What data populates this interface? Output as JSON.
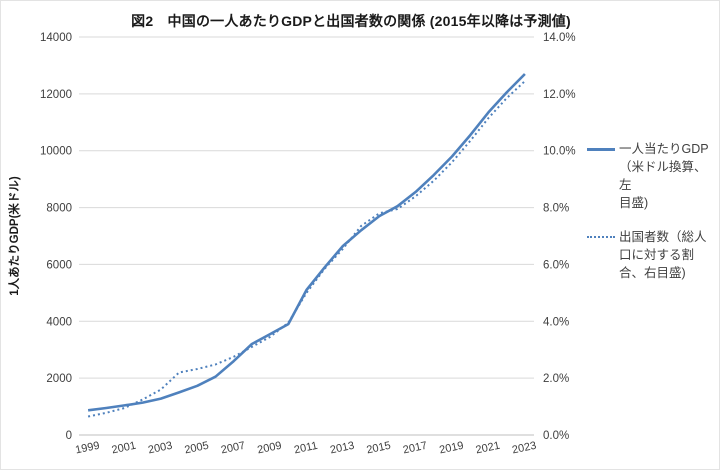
{
  "chart_data": {
    "type": "line",
    "title": "図2　中国の一人あたりGDPと出国者数の関係 (2015年以降は予測値)",
    "categories": [
      1999,
      2000,
      2001,
      2002,
      2003,
      2004,
      2005,
      2006,
      2007,
      2008,
      2009,
      2010,
      2011,
      2012,
      2013,
      2014,
      2015,
      2016,
      2017,
      2018,
      2019,
      2020,
      2021,
      2022,
      2023
    ],
    "x_tick_labels": [
      "1999",
      "2001",
      "2003",
      "2005",
      "2007",
      "2009",
      "2011",
      "2013",
      "2015",
      "2017",
      "2019",
      "2021",
      "2023"
    ],
    "series": [
      {
        "name": "一人当たりGDP（米ドル換算、左目盛)",
        "legend_lines": [
          "一人当たりGDP",
          "（米ドル換算、左",
          "目盛)"
        ],
        "axis": "left",
        "line_style": "solid",
        "unit": "USD",
        "color": "#4f81bd",
        "values": [
          870,
          950,
          1040,
          1140,
          1280,
          1500,
          1730,
          2050,
          2600,
          3200,
          3550,
          3900,
          5100,
          5900,
          6650,
          7200,
          7700,
          8050,
          8550,
          9150,
          9800,
          10550,
          11350,
          12050,
          12700
        ]
      },
      {
        "name": "出国者数（総人口に対する割合、右目盛)",
        "legend_lines": [
          "出国者数（総人",
          "口に対する割",
          "合、右目盛)"
        ],
        "axis": "right",
        "line_style": "dotted",
        "unit": "%",
        "color": "#4f81bd",
        "values": [
          0.65,
          0.78,
          0.95,
          1.25,
          1.6,
          2.2,
          2.32,
          2.48,
          2.75,
          3.1,
          3.45,
          3.95,
          5.0,
          5.85,
          6.55,
          7.35,
          7.8,
          7.95,
          8.4,
          8.95,
          9.6,
          10.35,
          11.15,
          11.85,
          12.45
        ]
      }
    ],
    "left_axis": {
      "title": "1人あたりGDP(米ドル)",
      "min": 0,
      "max": 14000,
      "step": 2000,
      "tick_labels": [
        "0",
        "2000",
        "4000",
        "6000",
        "8000",
        "10000",
        "12000",
        "14000"
      ]
    },
    "right_axis": {
      "min": 0,
      "max": 14,
      "step": 2,
      "unit": "%",
      "tick_labels": [
        "0.0%",
        "2.0%",
        "4.0%",
        "6.0%",
        "8.0%",
        "10.0%",
        "12.0%",
        "14.0%"
      ]
    },
    "grid": true,
    "legend_position": "right"
  },
  "colors": {
    "line_blue": "#4f81bd",
    "gridline": "#d9d9d9",
    "axis_line": "#bfbfbf",
    "tick_text": "#404040",
    "title_text": "#1a1a1a",
    "background": "#ffffff"
  }
}
